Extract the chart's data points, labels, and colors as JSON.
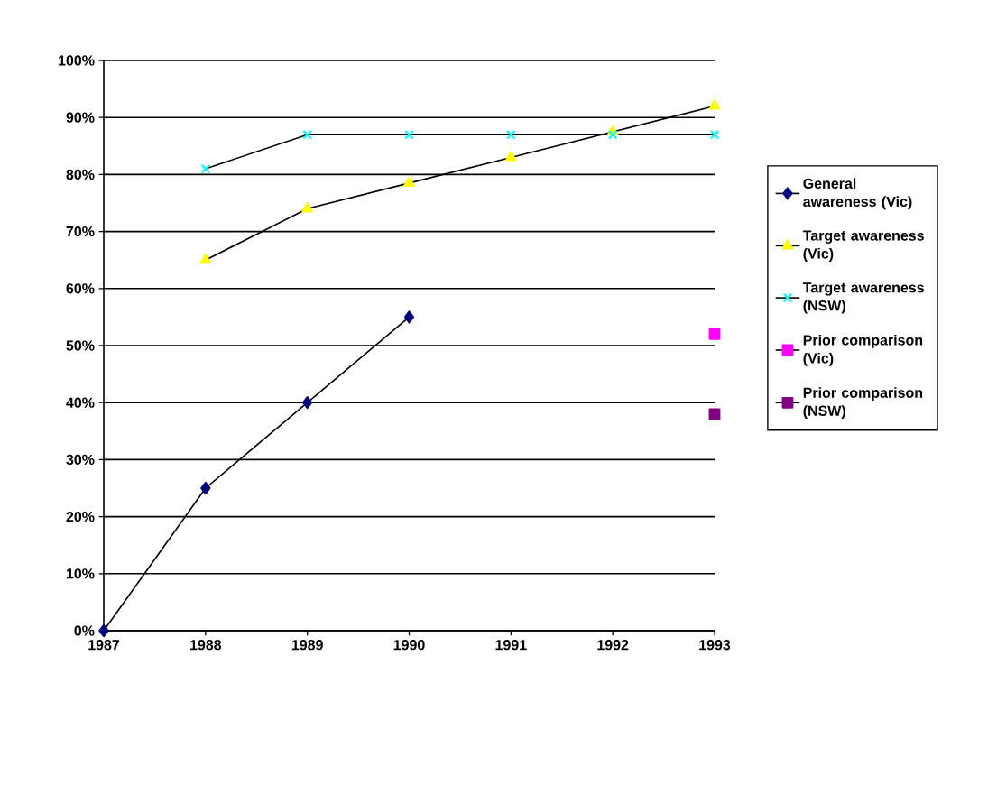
{
  "chart_data": {
    "type": "line",
    "x": [
      1987,
      1988,
      1989,
      1990,
      1991,
      1992,
      1993
    ],
    "xlim": [
      1987,
      1993
    ],
    "xticks": [
      1987,
      1988,
      1989,
      1990,
      1991,
      1992,
      1993
    ],
    "ylim": [
      0,
      100
    ],
    "yticks": [
      {
        "value": 0,
        "label": "0%"
      },
      {
        "value": 10,
        "label": "10%"
      },
      {
        "value": 20,
        "label": "20%"
      },
      {
        "value": 30,
        "label": "30%"
      },
      {
        "value": 40,
        "label": "40%"
      },
      {
        "value": 50,
        "label": "50%"
      },
      {
        "value": 60,
        "label": "60%"
      },
      {
        "value": 70,
        "label": "70%"
      },
      {
        "value": 80,
        "label": "80%"
      },
      {
        "value": 90,
        "label": "90%"
      },
      {
        "value": 100,
        "label": "100%"
      }
    ],
    "grid": "y",
    "legend": "right",
    "series": [
      {
        "name": "General awareness (Vic)",
        "color": "#000080",
        "marker": "diamond",
        "values": [
          0,
          25,
          40,
          55,
          null,
          null,
          null
        ]
      },
      {
        "name": "Target awareness (Vic)",
        "color": "#ffff00",
        "marker": "triangle",
        "values": [
          null,
          65,
          74,
          78.5,
          83,
          87.5,
          92
        ]
      },
      {
        "name": "Target awareness (NSW)",
        "color": "#00ffff",
        "marker": "cross",
        "values": [
          null,
          81,
          87,
          87,
          87,
          87,
          87
        ]
      },
      {
        "name": "Prior comparison (Vic)",
        "color": "#ff00ff",
        "marker": "square",
        "values": [
          null,
          null,
          null,
          null,
          null,
          null,
          52
        ]
      },
      {
        "name": "Prior comparison (NSW)",
        "color": "#800080",
        "marker": "square",
        "values": [
          null,
          null,
          null,
          null,
          null,
          null,
          38
        ]
      }
    ]
  }
}
